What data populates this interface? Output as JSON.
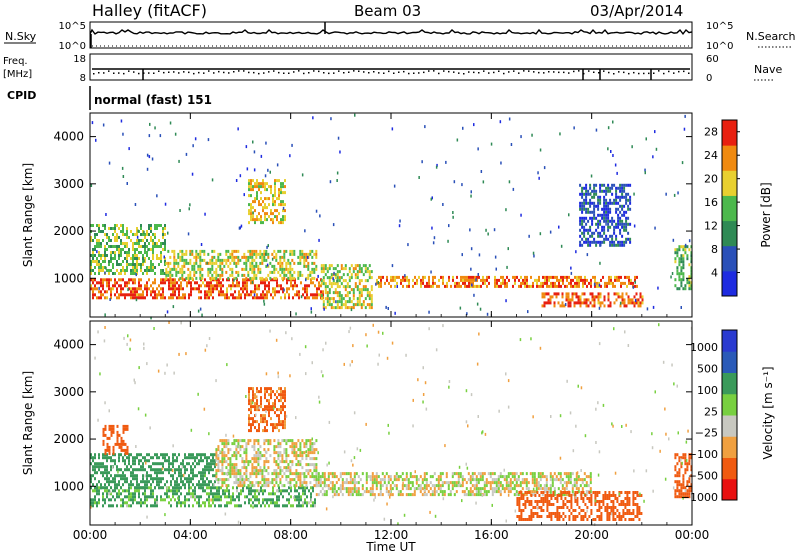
{
  "header": {
    "station": "Halley (fitACF)",
    "beam": "Beam 03",
    "date": "03/Apr/2014"
  },
  "strips": {
    "nsky_label": "N.Sky",
    "nsky_ticks": [
      "10^5",
      "10^0"
    ],
    "nsearch_label": "N.Search",
    "nsearch_ticks": [
      "10^5",
      "10^0"
    ],
    "freq_label": "Freq.",
    "freq_unit": "[MHz]",
    "freq_ticks": [
      "18",
      "8"
    ],
    "nave_label": "Nave",
    "nave_ticks": [
      "60",
      "0"
    ],
    "cpid_label": "CPID",
    "cpid_text": "normal (fast) 151"
  },
  "colors": {
    "power": [
      "#1e2be0",
      "#2a50b8",
      "#2f8a55",
      "#4cb84c",
      "#e8d030",
      "#f08a10",
      "#e82010"
    ],
    "velocity": [
      "#e81010",
      "#f05a10",
      "#f0a040",
      "#c8c8c0",
      "#78d040",
      "#3a9a5a",
      "#2a5ab8",
      "#2a3ad0"
    ]
  },
  "chart_data": [
    {
      "type": "heatmap",
      "name": "power-panel",
      "x_ticks": [
        "00:00",
        "04:00",
        "08:00",
        "12:00",
        "16:00",
        "20:00",
        "00:00"
      ],
      "xlabel": "Time UT",
      "xlim": [
        0,
        24
      ],
      "ylabel": "Slant Range [km]",
      "ylim": [
        180,
        4500
      ],
      "y_ticks": [
        1000,
        2000,
        3000,
        4000
      ],
      "colorbar": {
        "label": "Power [dB]",
        "ticks": [
          4,
          8,
          12,
          16,
          20,
          24,
          28
        ],
        "range": [
          0,
          30
        ]
      },
      "features": [
        {
          "t": [
            0.0,
            9.3
          ],
          "r": [
            580,
            1000
          ],
          "level": 26,
          "desc": "strong E/F scatter band"
        },
        {
          "t": [
            0.0,
            3.0
          ],
          "r": [
            1100,
            2150
          ],
          "level": 16
        },
        {
          "t": [
            3.0,
            9.0
          ],
          "r": [
            1000,
            1600
          ],
          "level": 18
        },
        {
          "t": [
            6.3,
            7.8
          ],
          "r": [
            2200,
            3100
          ],
          "level": 20
        },
        {
          "t": [
            9.2,
            11.2
          ],
          "r": [
            400,
            1300
          ],
          "level": 18
        },
        {
          "t": [
            11.4,
            21.8
          ],
          "r": [
            850,
            1050
          ],
          "level": 24
        },
        {
          "t": [
            18.0,
            22.0
          ],
          "r": [
            400,
            700
          ],
          "level": 26
        },
        {
          "t": [
            19.5,
            21.5
          ],
          "r": [
            1700,
            3000
          ],
          "level": 6
        },
        {
          "t": [
            23.3,
            24.0
          ],
          "r": [
            800,
            1700
          ],
          "level": 14
        }
      ]
    },
    {
      "type": "heatmap",
      "name": "velocity-panel",
      "x_ticks": [
        "00:00",
        "04:00",
        "08:00",
        "12:00",
        "16:00",
        "20:00",
        "00:00"
      ],
      "xlabel": "Time UT",
      "xlim": [
        0,
        24
      ],
      "ylabel": "Slant Range [km]",
      "ylim": [
        180,
        4500
      ],
      "y_ticks": [
        1000,
        2000,
        3000,
        4000
      ],
      "colorbar": {
        "label": "Velocity [m s⁻¹]",
        "ticks": [
          "1000",
          "500",
          "100",
          "25",
          "−25",
          "−100",
          "−500",
          "−1000"
        ]
      },
      "features": [
        {
          "t": [
            0.0,
            9.0
          ],
          "r": [
            600,
            1000
          ],
          "vel": 120,
          "desc": "green band"
        },
        {
          "t": [
            0.0,
            5.0
          ],
          "r": [
            1000,
            1700
          ],
          "vel": 300
        },
        {
          "t": [
            0.5,
            1.5
          ],
          "r": [
            1700,
            2300
          ],
          "vel": -300
        },
        {
          "t": [
            5.0,
            9.0
          ],
          "r": [
            1000,
            2000
          ],
          "vel": 0
        },
        {
          "t": [
            6.3,
            7.8
          ],
          "r": [
            2200,
            3100
          ],
          "vel": -150
        },
        {
          "t": [
            9.0,
            20.0
          ],
          "r": [
            800,
            1300
          ],
          "vel": 0
        },
        {
          "t": [
            17.0,
            22.0
          ],
          "r": [
            300,
            900
          ],
          "vel": -200
        },
        {
          "t": [
            23.3,
            24.0
          ],
          "r": [
            800,
            1700
          ],
          "vel": -400
        }
      ]
    }
  ]
}
